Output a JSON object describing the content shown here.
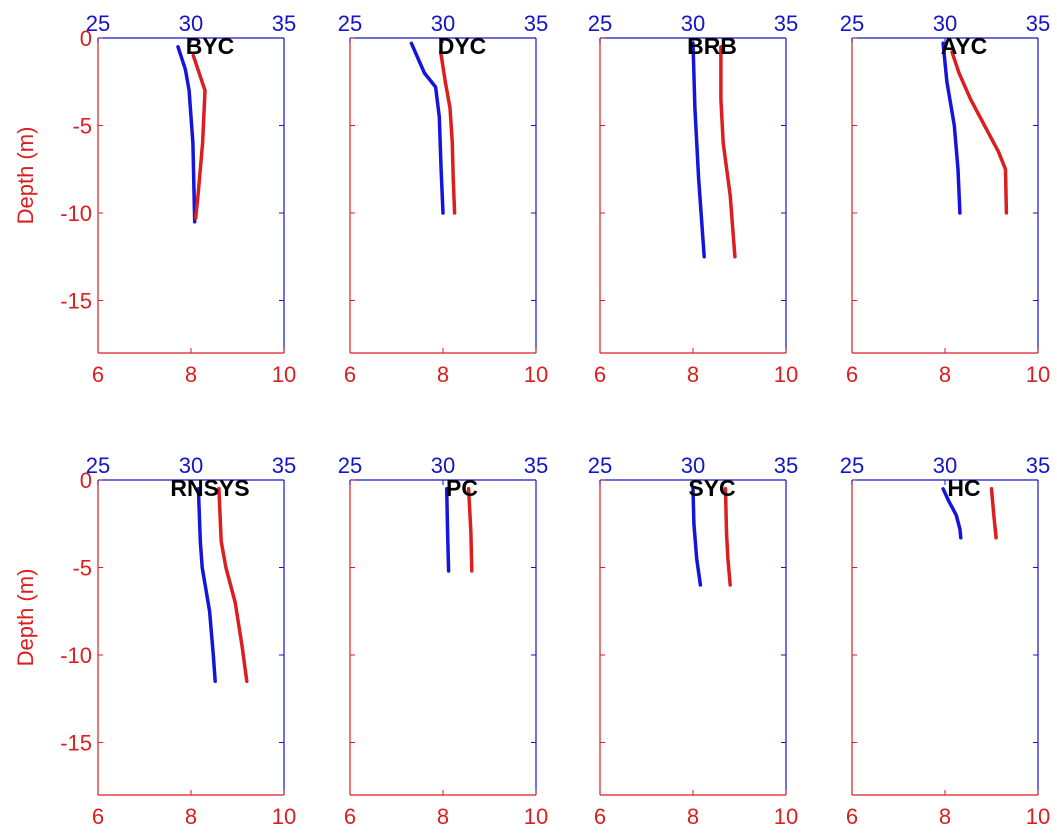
{
  "figure": {
    "colors": {
      "top_axis": "#1414c8",
      "left_bottom_axis": "#dc1e1e",
      "series1": "#1414dc",
      "series2": "#dc1e1e",
      "title": "#000000"
    }
  },
  "chart_data": [
    {
      "type": "line",
      "title": "BYC",
      "ylabel": "Depth (m)",
      "ylim": [
        -18,
        0
      ],
      "yticks": [
        0,
        -5,
        -10,
        -15
      ],
      "top_axis": {
        "range": [
          25,
          35
        ],
        "ticks": [
          25,
          30,
          35
        ]
      },
      "bottom_axis": {
        "range": [
          6,
          10
        ],
        "ticks": [
          6,
          8,
          10
        ]
      },
      "series": [
        {
          "axis": "top",
          "color": "#1414dc",
          "points": [
            [
              29.3,
              -0.5
            ],
            [
              29.7,
              -1.8
            ],
            [
              29.9,
              -3.0
            ],
            [
              30.1,
              -6.0
            ],
            [
              30.2,
              -10.5
            ]
          ]
        },
        {
          "axis": "bottom",
          "color": "#dc1e1e",
          "points": [
            [
              8.05,
              -1.0
            ],
            [
              8.2,
              -2.2
            ],
            [
              8.3,
              -3.0
            ],
            [
              8.25,
              -6.0
            ],
            [
              8.15,
              -9.0
            ],
            [
              8.1,
              -10.3
            ]
          ]
        }
      ]
    },
    {
      "type": "line",
      "title": "DYC",
      "ylabel": "",
      "ylim": [
        -18,
        0
      ],
      "yticks": [
        0,
        -5,
        -10,
        -15
      ],
      "top_axis": {
        "range": [
          25,
          35
        ],
        "ticks": [
          25,
          30,
          35
        ]
      },
      "bottom_axis": {
        "range": [
          6,
          10
        ],
        "ticks": [
          6,
          8,
          10
        ]
      },
      "series": [
        {
          "axis": "top",
          "color": "#1414dc",
          "points": [
            [
              28.3,
              -0.3
            ],
            [
              29.0,
              -2.0
            ],
            [
              29.6,
              -2.8
            ],
            [
              29.8,
              -4.5
            ],
            [
              29.9,
              -7.5
            ],
            [
              30.0,
              -10.0
            ]
          ]
        },
        {
          "axis": "bottom",
          "color": "#dc1e1e",
          "points": [
            [
              7.95,
              -0.8
            ],
            [
              8.05,
              -2.5
            ],
            [
              8.15,
              -4.0
            ],
            [
              8.2,
              -6.0
            ],
            [
              8.22,
              -8.0
            ],
            [
              8.25,
              -10.0
            ]
          ]
        }
      ]
    },
    {
      "type": "line",
      "title": "BRB",
      "ylabel": "",
      "ylim": [
        -18,
        0
      ],
      "yticks": [
        0,
        -5,
        -10,
        -15
      ],
      "top_axis": {
        "range": [
          25,
          35
        ],
        "ticks": [
          25,
          30,
          35
        ]
      },
      "bottom_axis": {
        "range": [
          6,
          10
        ],
        "ticks": [
          6,
          8,
          10
        ]
      },
      "series": [
        {
          "axis": "top",
          "color": "#1414dc",
          "points": [
            [
              30.0,
              -0.3
            ],
            [
              30.1,
              -4.0
            ],
            [
              30.3,
              -8.0
            ],
            [
              30.6,
              -12.5
            ]
          ]
        },
        {
          "axis": "bottom",
          "color": "#dc1e1e",
          "points": [
            [
              8.6,
              -0.5
            ],
            [
              8.6,
              -3.5
            ],
            [
              8.65,
              -6.0
            ],
            [
              8.8,
              -9.0
            ],
            [
              8.9,
              -12.5
            ]
          ]
        }
      ]
    },
    {
      "type": "line",
      "title": "AYC",
      "ylabel": "",
      "ylim": [
        -18,
        0
      ],
      "yticks": [
        0,
        -5,
        -10,
        -15
      ],
      "top_axis": {
        "range": [
          25,
          35
        ],
        "ticks": [
          25,
          30,
          35
        ]
      },
      "bottom_axis": {
        "range": [
          6,
          10
        ],
        "ticks": [
          6,
          8,
          10
        ]
      },
      "series": [
        {
          "axis": "top",
          "color": "#1414dc",
          "points": [
            [
              29.9,
              -0.3
            ],
            [
              30.1,
              -2.5
            ],
            [
              30.5,
              -5.0
            ],
            [
              30.7,
              -7.5
            ],
            [
              30.8,
              -10.0
            ]
          ]
        },
        {
          "axis": "bottom",
          "color": "#dc1e1e",
          "points": [
            [
              8.15,
              -0.8
            ],
            [
              8.3,
              -2.0
            ],
            [
              8.55,
              -3.5
            ],
            [
              8.85,
              -5.0
            ],
            [
              9.15,
              -6.5
            ],
            [
              9.3,
              -7.5
            ],
            [
              9.32,
              -10.0
            ]
          ]
        }
      ]
    },
    {
      "type": "line",
      "title": "RNSYS",
      "ylabel": "Depth (m)",
      "ylim": [
        -18,
        0
      ],
      "yticks": [
        0,
        -5,
        -10,
        -15
      ],
      "top_axis": {
        "range": [
          25,
          35
        ],
        "ticks": [
          25,
          30,
          35
        ]
      },
      "bottom_axis": {
        "range": [
          6,
          10
        ],
        "ticks": [
          6,
          8,
          10
        ]
      },
      "series": [
        {
          "axis": "top",
          "color": "#1414dc",
          "points": [
            [
              30.4,
              -0.5
            ],
            [
              30.5,
              -3.5
            ],
            [
              30.6,
              -5.0
            ],
            [
              31.0,
              -7.5
            ],
            [
              31.2,
              -10.0
            ],
            [
              31.3,
              -11.5
            ]
          ]
        },
        {
          "axis": "bottom",
          "color": "#dc1e1e",
          "points": [
            [
              8.6,
              -0.5
            ],
            [
              8.65,
              -3.5
            ],
            [
              8.75,
              -5.0
            ],
            [
              8.95,
              -7.0
            ],
            [
              9.1,
              -9.5
            ],
            [
              9.2,
              -11.5
            ]
          ]
        }
      ]
    },
    {
      "type": "line",
      "title": "PC",
      "ylabel": "",
      "ylim": [
        -18,
        0
      ],
      "yticks": [
        0,
        -5,
        -10,
        -15
      ],
      "top_axis": {
        "range": [
          25,
          35
        ],
        "ticks": [
          25,
          30,
          35
        ]
      },
      "bottom_axis": {
        "range": [
          6,
          10
        ],
        "ticks": [
          6,
          8,
          10
        ]
      },
      "series": [
        {
          "axis": "top",
          "color": "#1414dc",
          "points": [
            [
              30.2,
              -0.5
            ],
            [
              30.25,
              -3.0
            ],
            [
              30.3,
              -5.2
            ]
          ]
        },
        {
          "axis": "bottom",
          "color": "#dc1e1e",
          "points": [
            [
              8.55,
              -0.5
            ],
            [
              8.6,
              -3.0
            ],
            [
              8.62,
              -5.2
            ]
          ]
        }
      ]
    },
    {
      "type": "line",
      "title": "SYC",
      "ylabel": "",
      "ylim": [
        -18,
        0
      ],
      "yticks": [
        0,
        -5,
        -10,
        -15
      ],
      "top_axis": {
        "range": [
          25,
          35
        ],
        "ticks": [
          25,
          30,
          35
        ]
      },
      "bottom_axis": {
        "range": [
          6,
          10
        ],
        "ticks": [
          6,
          8,
          10
        ]
      },
      "series": [
        {
          "axis": "top",
          "color": "#1414dc",
          "points": [
            [
              30.0,
              -0.5
            ],
            [
              30.05,
              -2.5
            ],
            [
              30.2,
              -4.5
            ],
            [
              30.4,
              -6.0
            ]
          ]
        },
        {
          "axis": "bottom",
          "color": "#dc1e1e",
          "points": [
            [
              8.7,
              -0.5
            ],
            [
              8.72,
              -3.0
            ],
            [
              8.75,
              -4.5
            ],
            [
              8.8,
              -6.0
            ]
          ]
        }
      ]
    },
    {
      "type": "line",
      "title": "HC",
      "ylabel": "",
      "ylim": [
        -18,
        0
      ],
      "yticks": [
        0,
        -5,
        -10,
        -15
      ],
      "top_axis": {
        "range": [
          25,
          35
        ],
        "ticks": [
          25,
          30,
          35
        ]
      },
      "bottom_axis": {
        "range": [
          6,
          10
        ],
        "ticks": [
          6,
          8,
          10
        ]
      },
      "series": [
        {
          "axis": "top",
          "color": "#1414dc",
          "points": [
            [
              29.9,
              -0.5
            ],
            [
              30.2,
              -1.2
            ],
            [
              30.6,
              -2.0
            ],
            [
              30.8,
              -2.8
            ],
            [
              30.85,
              -3.3
            ]
          ]
        },
        {
          "axis": "bottom",
          "color": "#dc1e1e",
          "points": [
            [
              9.0,
              -0.5
            ],
            [
              9.05,
              -2.0
            ],
            [
              9.1,
              -3.3
            ]
          ]
        }
      ]
    }
  ]
}
